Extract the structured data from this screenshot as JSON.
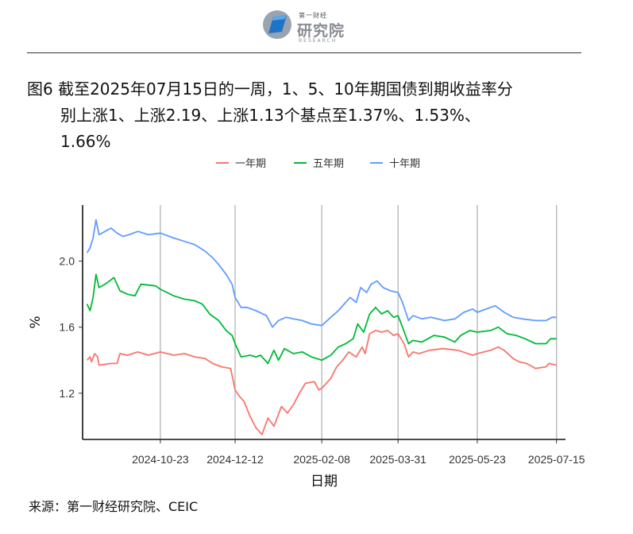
{
  "header": {
    "logo_small": "第一财经",
    "logo_main": "研究院",
    "logo_sub": "RESEARCH"
  },
  "figure": {
    "title_line1": "图6  截至2025年07月15日的一周，1、5、10年期国债到期收益率分",
    "title_line2": "别上涨1、上涨2.19、上涨1.13个基点至1.37%、1.53%、",
    "title_line3": "1.66%",
    "source": "来源：第一财经研究院、CEIC"
  },
  "chart_data": {
    "type": "line",
    "xlabel": "日期",
    "ylabel": "%",
    "ylim": [
      0.92,
      2.34
    ],
    "yticks": [
      1.2,
      1.6,
      2.0
    ],
    "ytick_labels": [
      "1.2",
      "1.6",
      "2.0"
    ],
    "xlim": [
      "2024-09-01",
      "2025-07-21"
    ],
    "xticks": [
      "2024-10-23",
      "2024-12-12",
      "2025-02-08",
      "2025-03-31",
      "2025-05-23",
      "2025-07-15"
    ],
    "grid": "vertical lines at x ticks",
    "legend_position": "top-center",
    "series": [
      {
        "name": "一年期",
        "color": "#F8766D",
        "points": [
          [
            "2024-09-04",
            1.4
          ],
          [
            "2024-09-06",
            1.42
          ],
          [
            "2024-09-07",
            1.39
          ],
          [
            "2024-09-09",
            1.44
          ],
          [
            "2024-09-11",
            1.42
          ],
          [
            "2024-09-12",
            1.37
          ],
          [
            "2024-09-20",
            1.38
          ],
          [
            "2024-09-24",
            1.38
          ],
          [
            "2024-09-26",
            1.44
          ],
          [
            "2024-10-01",
            1.43
          ],
          [
            "2024-10-08",
            1.45
          ],
          [
            "2024-10-15",
            1.43
          ],
          [
            "2024-10-23",
            1.45
          ],
          [
            "2024-11-01",
            1.43
          ],
          [
            "2024-11-08",
            1.44
          ],
          [
            "2024-11-15",
            1.42
          ],
          [
            "2024-11-22",
            1.41
          ],
          [
            "2024-11-27",
            1.38
          ],
          [
            "2024-12-03",
            1.36
          ],
          [
            "2024-12-09",
            1.35
          ],
          [
            "2024-12-12",
            1.22
          ],
          [
            "2024-12-15",
            1.18
          ],
          [
            "2024-12-18",
            1.15
          ],
          [
            "2024-12-22",
            1.06
          ],
          [
            "2024-12-26",
            0.99
          ],
          [
            "2024-12-30",
            0.95
          ],
          [
            "2025-01-03",
            1.05
          ],
          [
            "2025-01-07",
            1.0
          ],
          [
            "2025-01-12",
            1.12
          ],
          [
            "2025-01-16",
            1.08
          ],
          [
            "2025-01-20",
            1.13
          ],
          [
            "2025-01-24",
            1.2
          ],
          [
            "2025-01-28",
            1.26
          ],
          [
            "2025-02-03",
            1.27
          ],
          [
            "2025-02-06",
            1.22
          ],
          [
            "2025-02-08",
            1.23
          ],
          [
            "2025-02-14",
            1.29
          ],
          [
            "2025-02-18",
            1.36
          ],
          [
            "2025-02-22",
            1.4
          ],
          [
            "2025-02-26",
            1.45
          ],
          [
            "2025-03-03",
            1.42
          ],
          [
            "2025-03-07",
            1.48
          ],
          [
            "2025-03-09",
            1.44
          ],
          [
            "2025-03-12",
            1.56
          ],
          [
            "2025-03-16",
            1.58
          ],
          [
            "2025-03-20",
            1.57
          ],
          [
            "2025-03-24",
            1.58
          ],
          [
            "2025-03-28",
            1.55
          ],
          [
            "2025-03-31",
            1.56
          ],
          [
            "2025-04-04",
            1.5
          ],
          [
            "2025-04-07",
            1.42
          ],
          [
            "2025-04-10",
            1.45
          ],
          [
            "2025-04-14",
            1.44
          ],
          [
            "2025-04-21",
            1.46
          ],
          [
            "2025-04-30",
            1.47
          ],
          [
            "2025-05-10",
            1.46
          ],
          [
            "2025-05-20",
            1.43
          ],
          [
            "2025-05-23",
            1.44
          ],
          [
            "2025-06-01",
            1.46
          ],
          [
            "2025-06-06",
            1.48
          ],
          [
            "2025-06-10",
            1.46
          ],
          [
            "2025-06-16",
            1.41
          ],
          [
            "2025-06-20",
            1.39
          ],
          [
            "2025-06-25",
            1.38
          ],
          [
            "2025-07-01",
            1.35
          ],
          [
            "2025-07-08",
            1.36
          ],
          [
            "2025-07-10",
            1.38
          ],
          [
            "2025-07-15",
            1.37
          ]
        ]
      },
      {
        "name": "五年期",
        "color": "#00BA38",
        "points": [
          [
            "2024-09-04",
            1.74
          ],
          [
            "2024-09-06",
            1.7
          ],
          [
            "2024-09-08",
            1.78
          ],
          [
            "2024-09-10",
            1.92
          ],
          [
            "2024-09-12",
            1.84
          ],
          [
            "2024-09-16",
            1.86
          ],
          [
            "2024-09-22",
            1.9
          ],
          [
            "2024-09-26",
            1.82
          ],
          [
            "2024-10-01",
            1.8
          ],
          [
            "2024-10-06",
            1.79
          ],
          [
            "2024-10-10",
            1.86
          ],
          [
            "2024-10-20",
            1.85
          ],
          [
            "2024-10-23",
            1.83
          ],
          [
            "2024-11-01",
            1.79
          ],
          [
            "2024-11-08",
            1.77
          ],
          [
            "2024-11-15",
            1.76
          ],
          [
            "2024-11-20",
            1.74
          ],
          [
            "2024-11-25",
            1.68
          ],
          [
            "2024-12-01",
            1.64
          ],
          [
            "2024-12-06",
            1.58
          ],
          [
            "2024-12-10",
            1.55
          ],
          [
            "2024-12-12",
            1.5
          ],
          [
            "2024-12-16",
            1.42
          ],
          [
            "2024-12-22",
            1.43
          ],
          [
            "2024-12-26",
            1.42
          ],
          [
            "2024-12-29",
            1.43
          ],
          [
            "2025-01-03",
            1.38
          ],
          [
            "2025-01-07",
            1.46
          ],
          [
            "2025-01-10",
            1.4
          ],
          [
            "2025-01-14",
            1.47
          ],
          [
            "2025-01-20",
            1.44
          ],
          [
            "2025-01-26",
            1.45
          ],
          [
            "2025-02-01",
            1.42
          ],
          [
            "2025-02-08",
            1.4
          ],
          [
            "2025-02-14",
            1.43
          ],
          [
            "2025-02-19",
            1.48
          ],
          [
            "2025-02-24",
            1.5
          ],
          [
            "2025-03-01",
            1.53
          ],
          [
            "2025-03-04",
            1.62
          ],
          [
            "2025-03-08",
            1.57
          ],
          [
            "2025-03-12",
            1.68
          ],
          [
            "2025-03-16",
            1.72
          ],
          [
            "2025-03-20",
            1.68
          ],
          [
            "2025-03-24",
            1.7
          ],
          [
            "2025-03-28",
            1.66
          ],
          [
            "2025-03-31",
            1.67
          ],
          [
            "2025-04-03",
            1.6
          ],
          [
            "2025-04-07",
            1.5
          ],
          [
            "2025-04-10",
            1.52
          ],
          [
            "2025-04-16",
            1.51
          ],
          [
            "2025-04-24",
            1.55
          ],
          [
            "2025-05-01",
            1.54
          ],
          [
            "2025-05-08",
            1.51
          ],
          [
            "2025-05-12",
            1.55
          ],
          [
            "2025-05-18",
            1.58
          ],
          [
            "2025-05-23",
            1.57
          ],
          [
            "2025-06-01",
            1.58
          ],
          [
            "2025-06-06",
            1.6
          ],
          [
            "2025-06-12",
            1.56
          ],
          [
            "2025-06-18",
            1.55
          ],
          [
            "2025-06-24",
            1.53
          ],
          [
            "2025-07-01",
            1.5
          ],
          [
            "2025-07-08",
            1.5
          ],
          [
            "2025-07-11",
            1.53
          ],
          [
            "2025-07-15",
            1.53
          ]
        ]
      },
      {
        "name": "十年期",
        "color": "#619CFF",
        "points": [
          [
            "2024-09-04",
            2.05
          ],
          [
            "2024-09-06",
            2.08
          ],
          [
            "2024-09-08",
            2.14
          ],
          [
            "2024-09-10",
            2.25
          ],
          [
            "2024-09-12",
            2.16
          ],
          [
            "2024-09-16",
            2.18
          ],
          [
            "2024-09-20",
            2.2
          ],
          [
            "2024-09-24",
            2.17
          ],
          [
            "2024-09-28",
            2.15
          ],
          [
            "2024-10-02",
            2.16
          ],
          [
            "2024-10-08",
            2.18
          ],
          [
            "2024-10-15",
            2.16
          ],
          [
            "2024-10-23",
            2.17
          ],
          [
            "2024-11-01",
            2.14
          ],
          [
            "2024-11-08",
            2.12
          ],
          [
            "2024-11-15",
            2.1
          ],
          [
            "2024-11-22",
            2.06
          ],
          [
            "2024-11-27",
            2.02
          ],
          [
            "2024-12-01",
            1.98
          ],
          [
            "2024-12-06",
            1.92
          ],
          [
            "2024-12-10",
            1.86
          ],
          [
            "2024-12-12",
            1.78
          ],
          [
            "2024-12-16",
            1.72
          ],
          [
            "2024-12-20",
            1.72
          ],
          [
            "2024-12-26",
            1.7
          ],
          [
            "2025-01-02",
            1.67
          ],
          [
            "2025-01-06",
            1.6
          ],
          [
            "2025-01-10",
            1.64
          ],
          [
            "2025-01-15",
            1.66
          ],
          [
            "2025-01-20",
            1.65
          ],
          [
            "2025-01-26",
            1.64
          ],
          [
            "2025-02-01",
            1.62
          ],
          [
            "2025-02-08",
            1.61
          ],
          [
            "2025-02-14",
            1.66
          ],
          [
            "2025-02-19",
            1.7
          ],
          [
            "2025-02-23",
            1.74
          ],
          [
            "2025-02-27",
            1.78
          ],
          [
            "2025-03-03",
            1.75
          ],
          [
            "2025-03-06",
            1.84
          ],
          [
            "2025-03-10",
            1.81
          ],
          [
            "2025-03-13",
            1.86
          ],
          [
            "2025-03-17",
            1.88
          ],
          [
            "2025-03-21",
            1.84
          ],
          [
            "2025-03-26",
            1.82
          ],
          [
            "2025-03-31",
            1.81
          ],
          [
            "2025-04-03",
            1.75
          ],
          [
            "2025-04-07",
            1.64
          ],
          [
            "2025-04-10",
            1.67
          ],
          [
            "2025-04-16",
            1.65
          ],
          [
            "2025-04-22",
            1.66
          ],
          [
            "2025-05-01",
            1.64
          ],
          [
            "2025-05-08",
            1.65
          ],
          [
            "2025-05-14",
            1.69
          ],
          [
            "2025-05-20",
            1.71
          ],
          [
            "2025-05-23",
            1.69
          ],
          [
            "2025-05-29",
            1.71
          ],
          [
            "2025-06-04",
            1.73
          ],
          [
            "2025-06-10",
            1.69
          ],
          [
            "2025-06-16",
            1.66
          ],
          [
            "2025-06-22",
            1.65
          ],
          [
            "2025-07-01",
            1.64
          ],
          [
            "2025-07-08",
            1.64
          ],
          [
            "2025-07-12",
            1.66
          ],
          [
            "2025-07-15",
            1.66
          ]
        ]
      }
    ]
  }
}
